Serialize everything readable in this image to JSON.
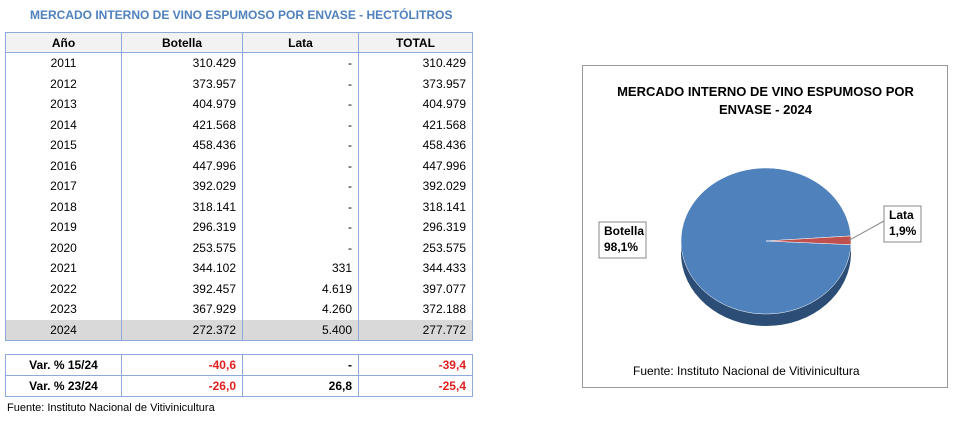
{
  "table": {
    "title": "MERCADO INTERNO DE VINO ESPUMOSO POR ENVASE - HECTÓLITROS",
    "columns": [
      "Año",
      "Botella",
      "Lata",
      "TOTAL"
    ],
    "rows": [
      [
        "2011",
        "310.429",
        "-",
        "310.429"
      ],
      [
        "2012",
        "373.957",
        "-",
        "373.957"
      ],
      [
        "2013",
        "404.979",
        "-",
        "404.979"
      ],
      [
        "2014",
        "421.568",
        "-",
        "421.568"
      ],
      [
        "2015",
        "458.436",
        "-",
        "458.436"
      ],
      [
        "2016",
        "447.996",
        "-",
        "447.996"
      ],
      [
        "2017",
        "392.029",
        "-",
        "392.029"
      ],
      [
        "2018",
        "318.141",
        "-",
        "318.141"
      ],
      [
        "2019",
        "296.319",
        "-",
        "296.319"
      ],
      [
        "2020",
        "253.575",
        "-",
        "253.575"
      ],
      [
        "2021",
        "344.102",
        "331",
        "344.433"
      ],
      [
        "2022",
        "392.457",
        "4.619",
        "397.077"
      ],
      [
        "2023",
        "367.929",
        "4.260",
        "372.188"
      ],
      [
        "2024",
        "272.372",
        "5.400",
        "277.772"
      ]
    ],
    "variations": [
      [
        "Var. % 15/24",
        "-40,6",
        "-",
        "-39,4"
      ],
      [
        "Var. % 23/24",
        "-26,0",
        "26,8",
        "-25,4"
      ]
    ],
    "source": "Fuente: Instituto Nacional de Vitivinicultura"
  },
  "chart_data": {
    "type": "pie",
    "title": "MERCADO INTERNO DE VINO ESPUMOSO POR ENVASE - 2024",
    "categories": [
      "Botella",
      "Lata"
    ],
    "values": [
      98.1,
      1.9
    ],
    "value_labels": [
      "98,1%",
      "1,9%"
    ],
    "colors": [
      "#4f81bd",
      "#c0504d"
    ],
    "source": "Fuente: Instituto Nacional de Vitivinicultura"
  }
}
